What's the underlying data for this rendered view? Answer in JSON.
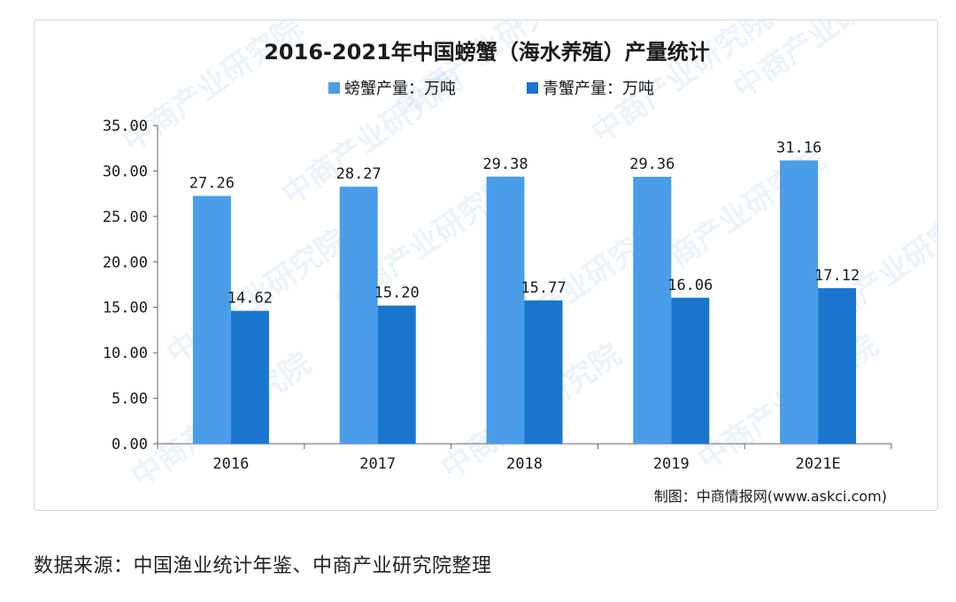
{
  "chart_data": {
    "type": "bar",
    "title": "2016-2021年中国螃蟹（海水养殖）产量统计",
    "categories": [
      "2016",
      "2017",
      "2018",
      "2019",
      "2021E"
    ],
    "series": [
      {
        "name": "螃蟹产量：万吨",
        "color": "#4a9de9",
        "values": [
          27.26,
          28.27,
          29.38,
          29.36,
          31.16
        ],
        "labels": [
          "27.26",
          "28.27",
          "29.38",
          "29.36",
          "31.16"
        ]
      },
      {
        "name": "青蟹产量：万吨",
        "color": "#1a75cf",
        "values": [
          14.62,
          15.2,
          15.77,
          16.06,
          17.12
        ],
        "labels": [
          "14.62",
          "15.20",
          "15.77",
          "16.06",
          "17.12"
        ]
      }
    ],
    "ylim": [
      0,
      35
    ],
    "yticks": [
      "0.00",
      "5.00",
      "10.00",
      "15.00",
      "20.00",
      "25.00",
      "30.00",
      "35.00"
    ],
    "legend_position": "top-center",
    "grid": false,
    "credit": "制图：中商情报网(www.askci.com)",
    "watermark": "中商产业研究院"
  },
  "source_note": "数据来源：中国渔业统计年鉴、中商产业研究院整理"
}
